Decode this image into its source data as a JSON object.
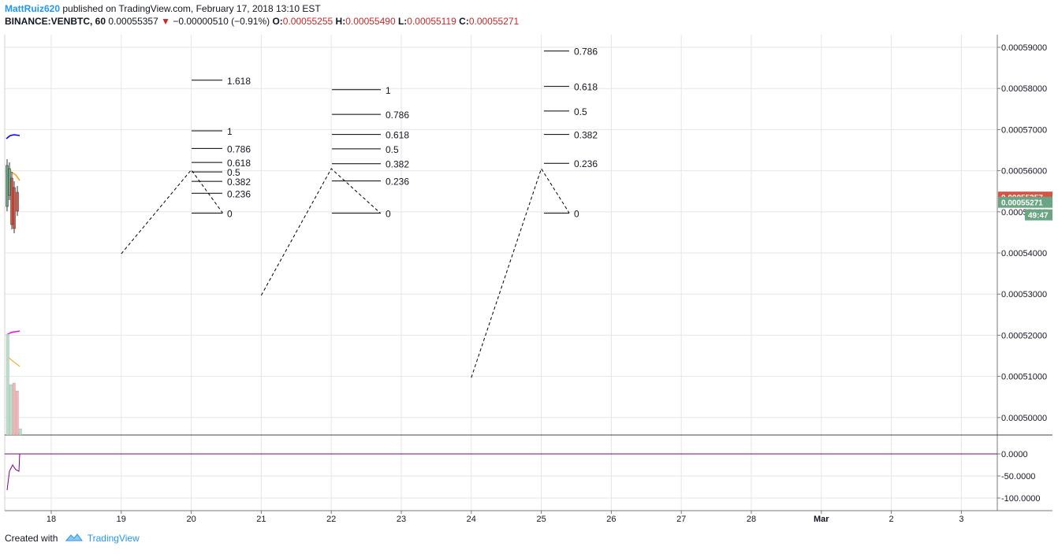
{
  "header": {
    "author": "MattRuiz620",
    "published": "published on TradingView.com, February 17, 2018 13:10 EST",
    "symbol": "BINANCE:VENBTC, 60",
    "last": "0.00055357",
    "change_arrow": "▼",
    "change": "−0.00000510 (−0.91%)",
    "o_label": "O:",
    "o_value": "0.00055255",
    "h_label": "H:",
    "h_value": "0.00055490",
    "l_label": "L:",
    "l_value": "0.00055119",
    "c_label": "C:",
    "c_value": "0.00055271"
  },
  "footer": {
    "created_with": "Created with",
    "brand": "TradingView"
  },
  "colors": {
    "up": "#6ba583",
    "down": "#d75442",
    "grid": "#e6e6e6",
    "last_price_tag": "#d75442",
    "close_tag": "#6ba583",
    "indicator_line": "#800080",
    "blue_line": "#0000ff",
    "orange_line": "#ff9800",
    "magenta_line": "#ff00ff"
  },
  "chart_data": {
    "type": "line",
    "title": "",
    "x_ticks": [
      "18",
      "19",
      "20",
      "21",
      "22",
      "23",
      "24",
      "25",
      "26",
      "27",
      "28",
      "Mar",
      "2",
      "3"
    ],
    "y_ticks": [
      "0.00059000",
      "0.00058000",
      "0.00057000",
      "0.00056000",
      "0.00055000",
      "0.00054000",
      "0.00053000",
      "0.00052000",
      "0.00051000",
      "0.00050000"
    ],
    "y_range": [
      0.000496,
      0.000592
    ],
    "last_price": "0.00055357",
    "close_price": "0.00055271",
    "countdown": "49:47",
    "indicator_ticks": [
      "0.0000",
      "-50.0000",
      "-100.0000"
    ],
    "fib_sets": [
      {
        "levels": [
          "1.618",
          "1",
          "0.786",
          "0.618",
          "0.5",
          "0.382",
          "0.236",
          "0"
        ],
        "values": [
          0.000582,
          0.0005697,
          0.0005654,
          0.000562,
          0.0005597,
          0.0005574,
          0.0005545,
          0.0005497
        ]
      },
      {
        "levels": [
          "1",
          "0.786",
          "0.618",
          "0.5",
          "0.382",
          "0.236",
          "0"
        ],
        "values": [
          0.0005797,
          0.0005737,
          0.0005688,
          0.0005653,
          0.0005617,
          0.0005575,
          0.0005497
        ]
      },
      {
        "levels": [
          "0.786",
          "0.618",
          "0.5",
          "0.382",
          "0.236",
          "0"
        ],
        "values": [
          0.0005891,
          0.0005805,
          0.0005745,
          0.0005688,
          0.0005618,
          0.0005497
        ]
      }
    ],
    "projections": [
      {
        "x": [
          "19",
          "20",
          "20.45"
        ],
        "y": [
          0.0005398,
          0.0005602,
          0.0005497
        ]
      },
      {
        "x": [
          "21",
          "22",
          "22.7"
        ],
        "y": [
          0.0005297,
          0.0005605,
          0.0005497
        ]
      },
      {
        "x": [
          "24",
          "25",
          "25.4"
        ],
        "y": [
          0.0005097,
          0.0005605,
          0.0005497
        ]
      }
    ]
  }
}
